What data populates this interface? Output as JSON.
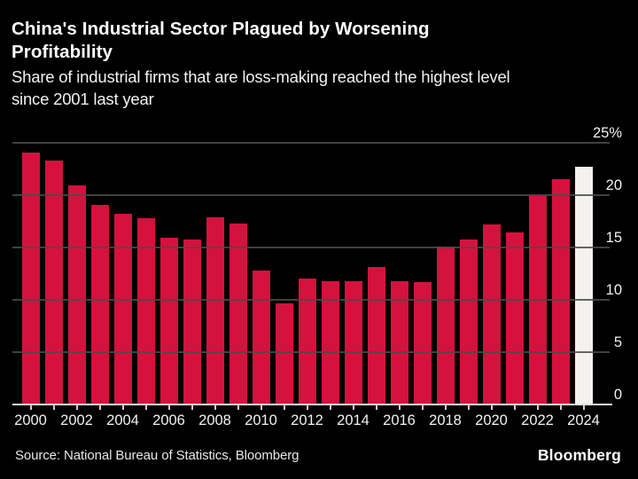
{
  "header": {
    "title_lines": [
      "China's Industrial Sector Plagued by Worsening",
      "Profitability"
    ],
    "subtitle_lines": [
      "Share of industrial firms that are loss-making reached the highest level",
      "since 2001 last year"
    ]
  },
  "chart_data": {
    "type": "bar",
    "title": "China's Industrial Sector Plagued by Worsening Profitability",
    "subtitle": "Share of industrial firms that are loss-making reached the highest level since 2001 last year",
    "unit": "%",
    "categories": [
      2000,
      2001,
      2002,
      2003,
      2004,
      2005,
      2006,
      2007,
      2008,
      2009,
      2010,
      2011,
      2012,
      2013,
      2014,
      2015,
      2016,
      2017,
      2018,
      2019,
      2020,
      2021,
      2022,
      2023,
      2024
    ],
    "values": [
      24.1,
      23.3,
      20.9,
      19.1,
      18.2,
      17.8,
      15.9,
      15.8,
      17.9,
      17.3,
      12.8,
      9.7,
      12.0,
      11.8,
      11.8,
      13.1,
      11.8,
      11.7,
      15.1,
      15.8,
      17.2,
      16.4,
      20.0,
      21.5,
      22.7
    ],
    "highlight_category": 2024,
    "highlight_color": "#f4f2ef",
    "bar_color": "#d4123d",
    "ylim": [
      0,
      25
    ],
    "yticks": [
      0,
      5,
      10,
      15,
      20,
      25
    ],
    "ytick_labels": [
      "0",
      "5",
      "10",
      "15",
      "20",
      "25%"
    ],
    "xtick_label_years": [
      2000,
      2002,
      2004,
      2006,
      2008,
      2010,
      2012,
      2014,
      2016,
      2018,
      2020,
      2022,
      2024
    ],
    "grid": "horizontal-on-top-of-bars",
    "legend": "none",
    "axis_side": "right",
    "background": "#000000"
  },
  "footer": {
    "source": "Source: National Bureau of Statistics, Bloomberg",
    "logo": "Bloomberg"
  },
  "colors": {
    "background": "#000000",
    "title_text": "#ffffff",
    "axis_text": "#f2f2f2",
    "gridline": "#4b4b4b",
    "baseline": "#e2e2e2",
    "bar_red": "#d4123d",
    "bar_white": "#f4f2ef"
  }
}
